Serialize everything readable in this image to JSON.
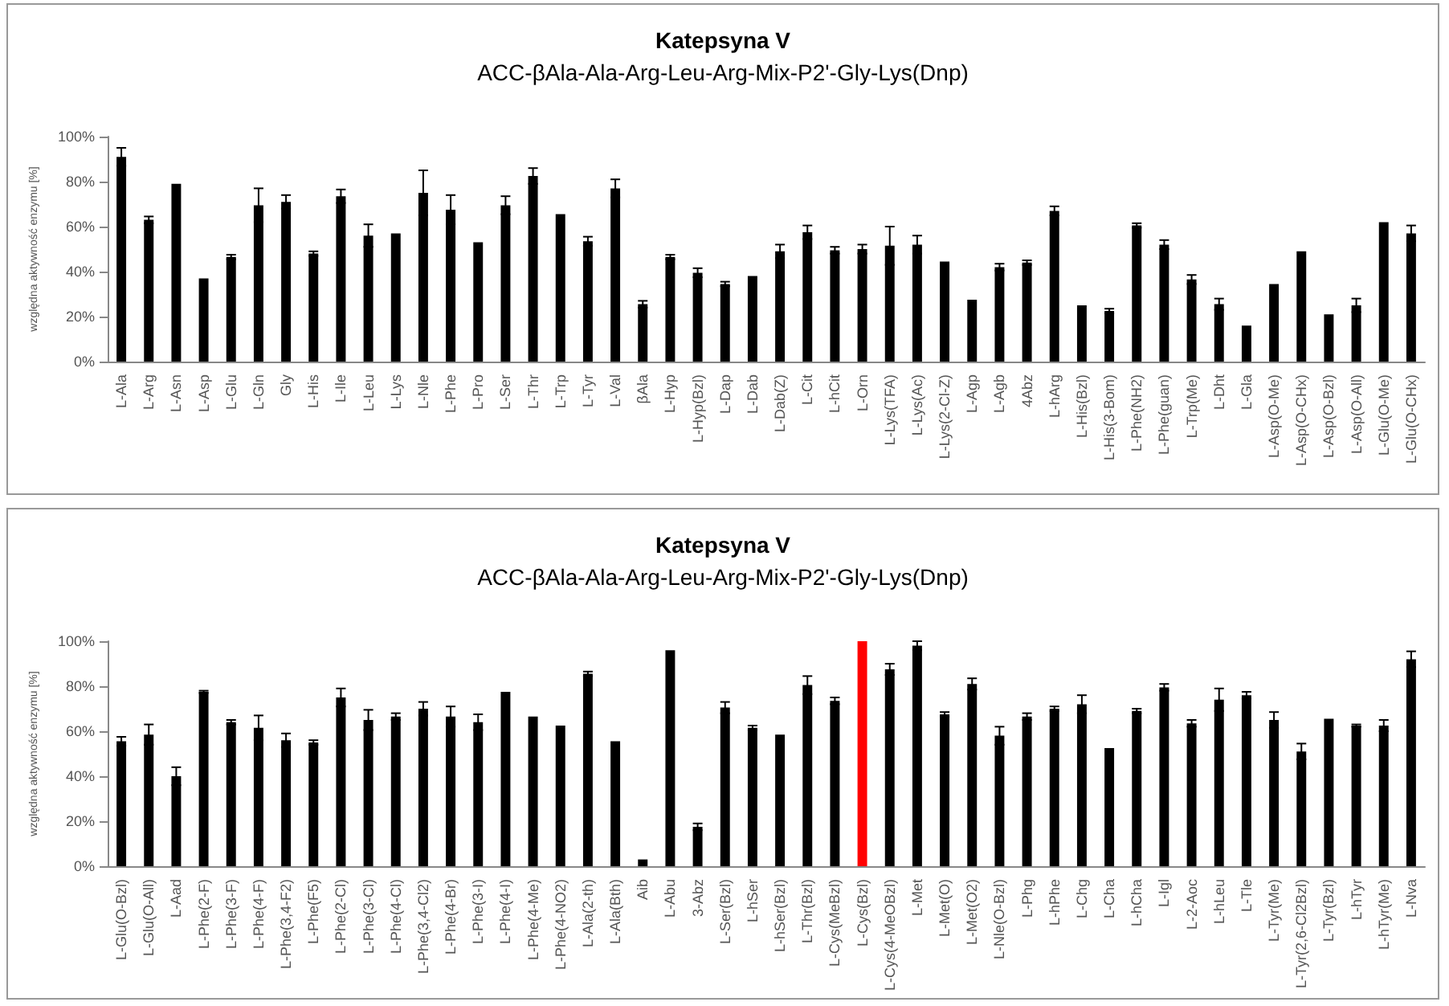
{
  "chart_data": [
    {
      "type": "bar",
      "title": "Katepsyna V",
      "subtitle": "ACC-βAla-Ala-Arg-Leu-Arg-Mix-P2'-Gly-Lys(Dnp)",
      "ylabel": "względna aktywność enzymu [%]",
      "categories": [
        "L-Ala",
        "L-Arg",
        "L-Asn",
        "L-Asp",
        "L-Glu",
        "L-Gln",
        "Gly",
        "L-His",
        "L-Ile",
        "L-Leu",
        "L-Lys",
        "L-Nle",
        "L-Phe",
        "L-Pro",
        "L-Ser",
        "L-Thr",
        "L-Trp",
        "L-Tyr",
        "L-Val",
        "βAla",
        "L-Hyp",
        "L-Hyp(Bzl)",
        "L-Dap",
        "L-Dab",
        "L-Dab(Z)",
        "L-Cit",
        "L-hCit",
        "L-Orn",
        "L-Lys(TFA)",
        "L-Lys(Ac)",
        "L-Lys(2-Cl-Z)",
        "L-Agp",
        "L-Agb",
        "4Abz",
        "L-hArg",
        "L-His(Bzl)",
        "L-His(3-Bom)",
        "L-Phe(NH2)",
        "L-Phe(guan)",
        "L-Trp(Me)",
        "L-Dht",
        "L-Gla",
        "L-Asp(O-Me)",
        "L-Asp(O-CHx)",
        "L-Asp(O-Bzl)",
        "L-Asp(O-All)",
        "L-Glu(O-Me)",
        "L-Glu(O-CHx)"
      ],
      "values": [
        91,
        63,
        79,
        37,
        46.5,
        69.5,
        71,
        48,
        73.5,
        56,
        57,
        75,
        67.5,
        53,
        69.5,
        82.5,
        65.5,
        53.5,
        77,
        25.5,
        46.5,
        39.5,
        34.5,
        38,
        49,
        57.5,
        49.5,
        50,
        51.5,
        52,
        44.5,
        27.5,
        42,
        44,
        67,
        25,
        22.5,
        60.5,
        52,
        36.5,
        25.5,
        16,
        34.5,
        49,
        21,
        25,
        62,
        57
      ],
      "errors": [
        4,
        1.5,
        null,
        null,
        1,
        7.5,
        3,
        1,
        3,
        5,
        null,
        10,
        6.5,
        null,
        4,
        3.5,
        null,
        2,
        4,
        1.5,
        1,
        2,
        1,
        null,
        3,
        3,
        1.5,
        2,
        8.5,
        4,
        null,
        null,
        1.5,
        1,
        2,
        null,
        1,
        1,
        2,
        2,
        2.5,
        null,
        null,
        null,
        null,
        3,
        null,
        3.5
      ],
      "color": "#000000",
      "ylim": [
        0,
        100
      ],
      "yticks": [
        {
          "value": 0,
          "label": "0%"
        },
        {
          "value": 20,
          "label": "20%"
        },
        {
          "value": 40,
          "label": "40%"
        },
        {
          "value": 60,
          "label": "60%"
        },
        {
          "value": 80,
          "label": "80%"
        },
        {
          "value": 100,
          "label": "100%"
        }
      ]
    },
    {
      "type": "bar",
      "title": "Katepsyna V",
      "subtitle": "ACC-βAla-Ala-Arg-Leu-Arg-Mix-P2'-Gly-Lys(Dnp)",
      "ylabel": "względna aktywność enzymu [%]",
      "categories": [
        "L-Glu(O-Bzl)",
        "L-Glu(O-All)",
        "L-Aad",
        "L-Phe(2-F)",
        "L-Phe(3-F)",
        "L-Phe(4-F)",
        "L-Phe(3,4-F2)",
        "L-Phe(F5)",
        "L-Phe(2-Cl)",
        "L-Phe(3-Cl)",
        "L-Phe(4-Cl)",
        "L-Phe(3,4-Cl2)",
        "L-Phe(4-Br)",
        "L-Phe(3-I)",
        "L-Phe(4-I)",
        "L-Phe(4-Me)",
        "L-Phe(4-NO2)",
        "L-Ala(2-th)",
        "L-Ala(Bth)",
        "Aib",
        "L-Abu",
        "3-Abz",
        "L-Ser(Bzl)",
        "L-hSer",
        "L-hSer(Bzl)",
        "L-Thr(Bzl)",
        "L-Cys(MeBzl)",
        "L-Cys(Bzl)",
        "L-Cys(4-MeOBzl)",
        "L-Met",
        "L-Met(O)",
        "L-Met(O2)",
        "L-Nle(O-Bzl)",
        "L-Phg",
        "L-hPhe",
        "L-Chg",
        "L-Cha",
        "L-hCha",
        "L-Igl",
        "L-2-Aoc",
        "L-hLeu",
        "L-Tle",
        "L-Tyr(Me)",
        "L-Tyr(2,6-Cl2Bzl)",
        "L-Tyr(Bzl)",
        "L-hTyr",
        "L-hTyr(Me)",
        "L-Nva"
      ],
      "values": [
        55.5,
        58.5,
        40,
        77.5,
        64,
        61.5,
        56,
        55,
        75,
        65,
        66.5,
        70,
        66.5,
        64,
        77.5,
        66.5,
        62.5,
        85.5,
        55.5,
        3,
        96,
        17.5,
        70.5,
        61.5,
        58.5,
        80.5,
        73.5,
        100,
        87.5,
        98,
        67.5,
        81,
        58,
        66.5,
        70,
        72,
        52.5,
        69,
        79.5,
        63.5,
        74,
        76,
        65,
        51,
        65.5,
        62.5,
        62.5,
        92
      ],
      "errors": [
        2,
        4.5,
        4,
        0.5,
        1,
        5.5,
        3,
        1,
        4,
        4.5,
        1.5,
        3,
        4.5,
        3.5,
        null,
        null,
        null,
        1,
        null,
        null,
        null,
        1.5,
        2.5,
        1,
        null,
        4,
        1.5,
        null,
        2.5,
        2,
        1,
        2.5,
        4,
        1.5,
        1,
        4,
        null,
        1,
        1.5,
        1.5,
        5,
        1.5,
        3.5,
        3.5,
        null,
        0.5,
        2.5,
        3.5
      ],
      "colors": [
        "#000000",
        "#000000",
        "#000000",
        "#000000",
        "#000000",
        "#000000",
        "#000000",
        "#000000",
        "#000000",
        "#000000",
        "#000000",
        "#000000",
        "#000000",
        "#000000",
        "#000000",
        "#000000",
        "#000000",
        "#000000",
        "#000000",
        "#000000",
        "#000000",
        "#000000",
        "#000000",
        "#000000",
        "#000000",
        "#000000",
        "#000000",
        "#ff0000",
        "#000000",
        "#000000",
        "#000000",
        "#000000",
        "#000000",
        "#000000",
        "#000000",
        "#000000",
        "#000000",
        "#000000",
        "#000000",
        "#000000",
        "#000000",
        "#000000",
        "#000000",
        "#000000",
        "#000000",
        "#000000",
        "#000000",
        "#000000"
      ],
      "ylim": [
        0,
        100
      ],
      "yticks": [
        {
          "value": 0,
          "label": "0%"
        },
        {
          "value": 20,
          "label": "20%"
        },
        {
          "value": 40,
          "label": "40%"
        },
        {
          "value": 60,
          "label": "60%"
        },
        {
          "value": 80,
          "label": "80%"
        },
        {
          "value": 100,
          "label": "100%"
        }
      ]
    }
  ]
}
